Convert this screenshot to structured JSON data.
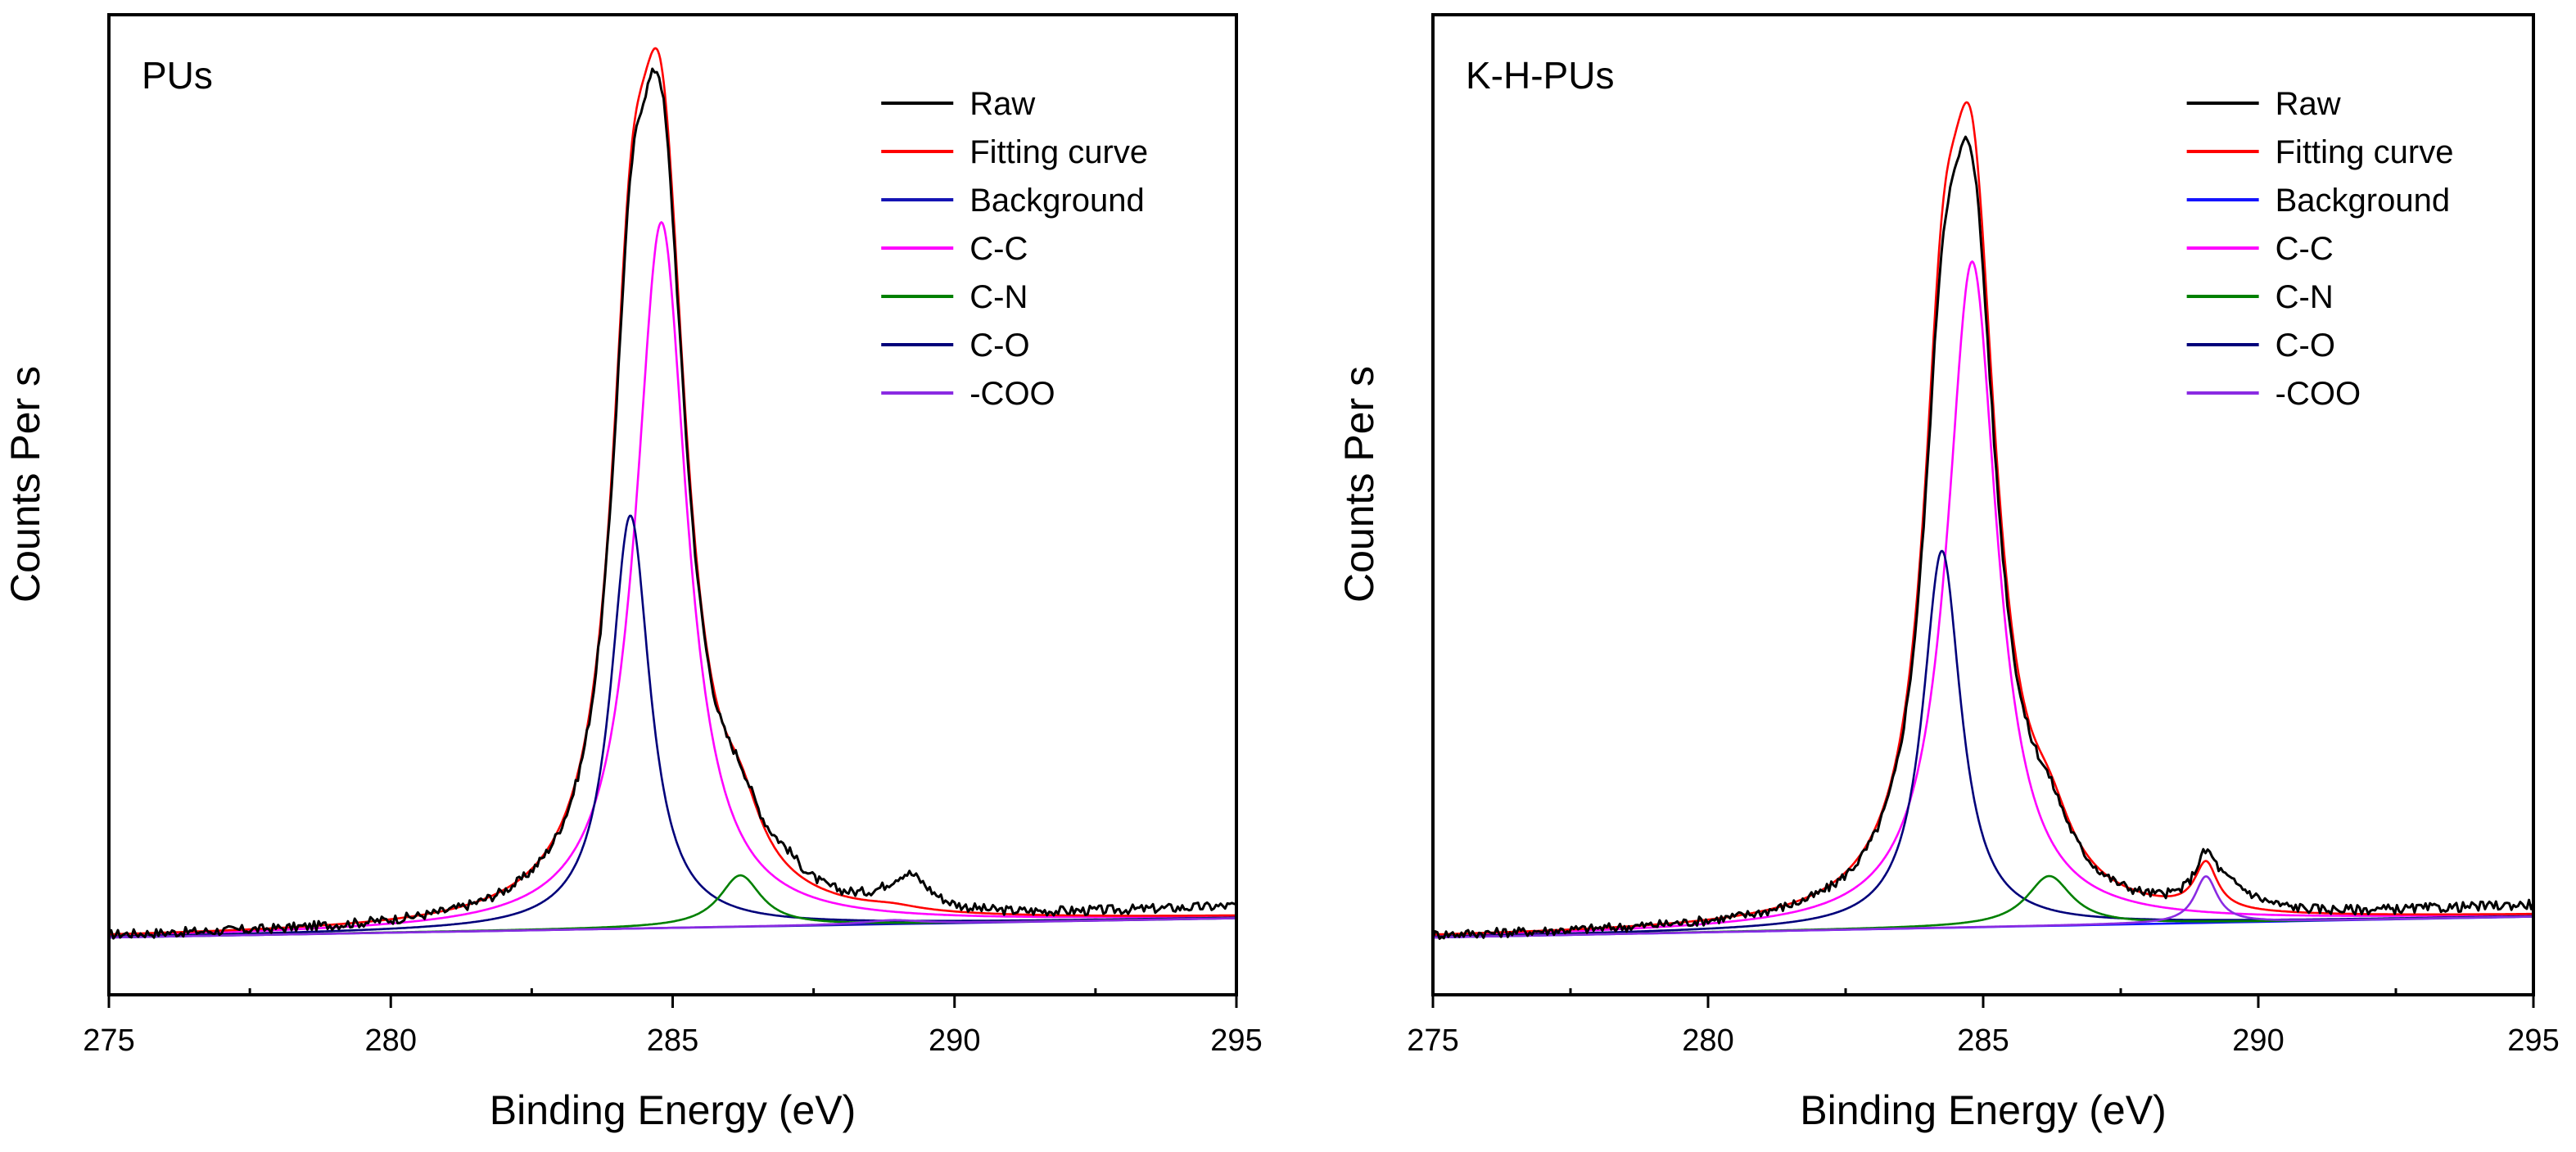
{
  "figure": {
    "description_free": true
  },
  "chart_data": [
    {
      "type": "line",
      "panel_label": "PUs",
      "xlabel": "Binding Energy (eV)",
      "ylabel": "Counts Per s",
      "xlim": [
        275,
        295
      ],
      "ylim": [
        0,
        1.13
      ],
      "x_ticks": [
        "275",
        "280",
        "285",
        "290",
        "295"
      ],
      "x_tick_values": [
        275,
        280,
        285,
        290,
        295
      ],
      "minor_tick_values": [
        277.5,
        282.5,
        287.5,
        292.5
      ],
      "legend_position": "top-right",
      "legend": [
        "Raw",
        "Fitting curve",
        "Background",
        "C-C",
        "C-N",
        "C-O",
        "-COO"
      ],
      "colors": {
        "Raw": "#000000",
        "Fitting curve": "#ff0000",
        "Background": "#1414b4",
        "C-C": "#ff00ff",
        "C-N": "#008000",
        "C-O": "#00007a",
        "-COO": "#8a2be2"
      },
      "background": {
        "start": 0.0,
        "end": 0.024
      },
      "components": [
        {
          "name": "C-C",
          "center": 284.8,
          "height": 0.88,
          "width": 0.55
        },
        {
          "name": "C-O",
          "center": 284.25,
          "height": 0.515,
          "width": 0.42
        },
        {
          "name": "C-N",
          "center": 286.2,
          "height": 0.064,
          "width": 0.45
        },
        {
          "name": "-COO",
          "center": 288.9,
          "height": 0.005,
          "width": 0.6
        }
      ],
      "raw_features": [
        {
          "center": 289.2,
          "height": 0.04,
          "width": 0.45
        },
        {
          "center": 287.0,
          "height": 0.02,
          "width": 0.4
        }
      ],
      "raw_scale": 0.975,
      "raw_noise": 0.006,
      "raw_tail_rise": 0.012
    },
    {
      "type": "line",
      "panel_label": "K-H-PUs",
      "xlabel": "Binding Energy (eV)",
      "ylabel": "Counts Per s",
      "xlim": [
        275,
        295
      ],
      "ylim": [
        0,
        1.13
      ],
      "x_ticks": [
        "275",
        "280",
        "285",
        "290",
        "295"
      ],
      "x_tick_values": [
        275,
        280,
        285,
        290,
        295
      ],
      "minor_tick_values": [
        277.5,
        282.5,
        287.5,
        292.5
      ],
      "legend_position": "top-right",
      "legend": [
        "Raw",
        "Fitting curve",
        "Background",
        "C-C",
        "C-N",
        "C-O",
        "-COO"
      ],
      "colors": {
        "Raw": "#000000",
        "Fitting curve": "#ff0000",
        "Background": "#1414ff",
        "C-C": "#ff00ff",
        "C-N": "#008000",
        "C-O": "#00007a",
        "-COO": "#8a2be2"
      },
      "background": {
        "start": 0.0,
        "end": 0.026
      },
      "components": [
        {
          "name": "C-C",
          "center": 284.8,
          "height": 0.83,
          "width": 0.55
        },
        {
          "name": "C-O",
          "center": 284.25,
          "height": 0.47,
          "width": 0.42
        },
        {
          "name": "C-N",
          "center": 286.2,
          "height": 0.062,
          "width": 0.5
        },
        {
          "name": "-COO",
          "center": 289.05,
          "height": 0.058,
          "width": 0.25
        }
      ],
      "raw_features": [
        {
          "center": 289.5,
          "height": 0.025,
          "width": 0.6
        }
      ],
      "raw_scale": 0.955,
      "raw_noise": 0.006,
      "raw_tail_rise": 0.012
    }
  ]
}
